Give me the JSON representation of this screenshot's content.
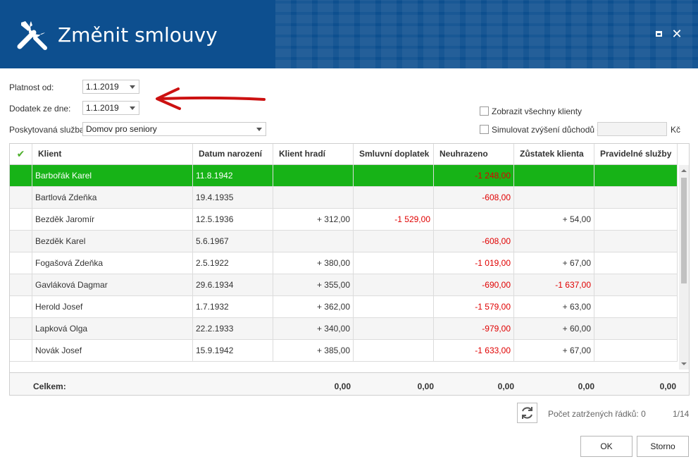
{
  "window": {
    "title": "Změnit smlouvy"
  },
  "form": {
    "platnost_label": "Platnost od:",
    "platnost_value": "1.1.2019",
    "dodatek_label": "Dodatek ze dne:",
    "dodatek_value": "1.1.2019",
    "sluzba_label": "Poskytovaná služba:",
    "sluzba_value": "Domov pro seniory",
    "zobrazit_label": "Zobrazit všechny klienty",
    "simulovat_label": "Simulovat zvýšení důchodů o:",
    "simulovat_value": "",
    "currency": "Kč"
  },
  "grid": {
    "columns": [
      "Klient",
      "Datum narození",
      "Klient hradí",
      "Smluvní doplatek",
      "Neuhrazeno",
      "Zůstatek klienta",
      "Pravidelné služby"
    ],
    "rows": [
      {
        "klient": "Barbořák Karel",
        "datum": "11.8.1942",
        "hradi": "",
        "doplatek": "",
        "neuhrazeno": "-1 248,00",
        "zustatek": "",
        "sluzby": ""
      },
      {
        "klient": "Bartlová Zdeňka",
        "datum": "19.4.1935",
        "hradi": "",
        "doplatek": "",
        "neuhrazeno": "-608,00",
        "zustatek": "",
        "sluzby": ""
      },
      {
        "klient": "Bezděk Jaromír",
        "datum": "12.5.1936",
        "hradi": "+ 312,00",
        "doplatek": "-1 529,00",
        "neuhrazeno": "",
        "zustatek": "+ 54,00",
        "sluzby": ""
      },
      {
        "klient": "Bezděk Karel",
        "datum": "5.6.1967",
        "hradi": "",
        "doplatek": "",
        "neuhrazeno": "-608,00",
        "zustatek": "",
        "sluzby": ""
      },
      {
        "klient": "Fogašová Zdeňka",
        "datum": "2.5.1922",
        "hradi": "+ 380,00",
        "doplatek": "",
        "neuhrazeno": "-1 019,00",
        "zustatek": "+ 67,00",
        "sluzby": ""
      },
      {
        "klient": "Gavláková Dagmar",
        "datum": "29.6.1934",
        "hradi": "+ 355,00",
        "doplatek": "",
        "neuhrazeno": "-690,00",
        "zustatek": "-1 637,00",
        "sluzby": ""
      },
      {
        "klient": "Herold Josef",
        "datum": "1.7.1932",
        "hradi": "+ 362,00",
        "doplatek": "",
        "neuhrazeno": "-1 579,00",
        "zustatek": "+ 63,00",
        "sluzby": ""
      },
      {
        "klient": "Lapková Olga",
        "datum": "22.2.1933",
        "hradi": "+ 340,00",
        "doplatek": "",
        "neuhrazeno": "-979,00",
        "zustatek": "+ 60,00",
        "sluzby": ""
      },
      {
        "klient": "Novák Josef",
        "datum": "15.9.1942",
        "hradi": "+ 385,00",
        "doplatek": "",
        "neuhrazeno": "-1 633,00",
        "zustatek": "+ 67,00",
        "sluzby": ""
      }
    ],
    "footer": {
      "label": "Celkem:",
      "hradi": "0,00",
      "doplatek": "0,00",
      "neuhrazeno": "0,00",
      "zustatek": "0,00",
      "sluzby": "0,00"
    }
  },
  "status": {
    "checked_label": "Počet zatržených řádků: 0",
    "page": "1/14"
  },
  "buttons": {
    "ok": "OK",
    "storno": "Storno"
  },
  "colors": {
    "header": "#0d4f8f",
    "selected_row": "#17b317",
    "negative": "#e00000",
    "arrow": "#cc1111"
  }
}
